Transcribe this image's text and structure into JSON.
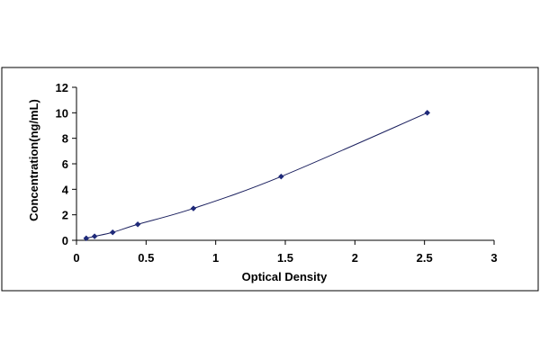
{
  "chart_data": {
    "type": "scatter",
    "title": "",
    "xlabel": "Optical Density",
    "ylabel": "Concentration(ng/mL)",
    "xlim": [
      0,
      3
    ],
    "ylim": [
      0,
      12
    ],
    "x_ticks": [
      0,
      0.5,
      1,
      1.5,
      2,
      2.5,
      3
    ],
    "x_tick_labels": [
      "0",
      "0.5",
      "1",
      "1.5",
      "2",
      "2.5",
      "3"
    ],
    "y_ticks": [
      0,
      2,
      4,
      6,
      8,
      10,
      12
    ],
    "y_tick_labels": [
      "0",
      "2",
      "4",
      "6",
      "8",
      "10",
      "12"
    ],
    "grid": false,
    "legend": "none",
    "series": [
      {
        "x": [
          0.07,
          0.13,
          0.26,
          0.44,
          0.84,
          1.47,
          2.52
        ],
        "y": [
          0.156,
          0.312,
          0.625,
          1.25,
          2.5,
          5,
          10
        ],
        "marker_color": "#1f2a7a",
        "line_color": "#1a1f5e",
        "fit_line": true
      }
    ]
  }
}
